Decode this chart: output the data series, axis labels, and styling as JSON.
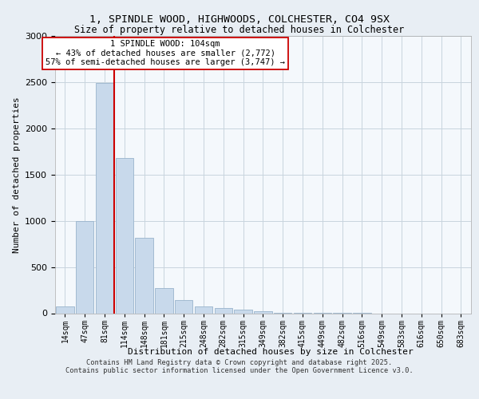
{
  "title_line1": "1, SPINDLE WOOD, HIGHWOODS, COLCHESTER, CO4 9SX",
  "title_line2": "Size of property relative to detached houses in Colchester",
  "xlabel": "Distribution of detached houses by size in Colchester",
  "ylabel": "Number of detached properties",
  "bar_labels": [
    "14sqm",
    "47sqm",
    "81sqm",
    "114sqm",
    "148sqm",
    "181sqm",
    "215sqm",
    "248sqm",
    "282sqm",
    "315sqm",
    "349sqm",
    "382sqm",
    "415sqm",
    "449sqm",
    "482sqm",
    "516sqm",
    "549sqm",
    "583sqm",
    "616sqm",
    "650sqm",
    "683sqm"
  ],
  "bar_values": [
    75,
    1000,
    2490,
    1680,
    820,
    270,
    145,
    70,
    55,
    35,
    18,
    8,
    5,
    3,
    2,
    1,
    0,
    0,
    0,
    0,
    0
  ],
  "bar_color": "#c8d9eb",
  "bar_edgecolor": "#9ab4cc",
  "vline_pos": 2.5,
  "vline_color": "#cc0000",
  "annotation_text": "1 SPINDLE WOOD: 104sqm\n← 43% of detached houses are smaller (2,772)\n57% of semi-detached houses are larger (3,747) →",
  "annotation_box_facecolor": "#ffffff",
  "annotation_box_edgecolor": "#cc0000",
  "ylim_max": 3000,
  "yticks": [
    0,
    500,
    1000,
    1500,
    2000,
    2500,
    3000
  ],
  "footer_text": "Contains HM Land Registry data © Crown copyright and database right 2025.\nContains public sector information licensed under the Open Government Licence v3.0.",
  "fig_facecolor": "#e8eef4",
  "plot_facecolor": "#f4f8fc",
  "grid_color": "#c8d4de"
}
